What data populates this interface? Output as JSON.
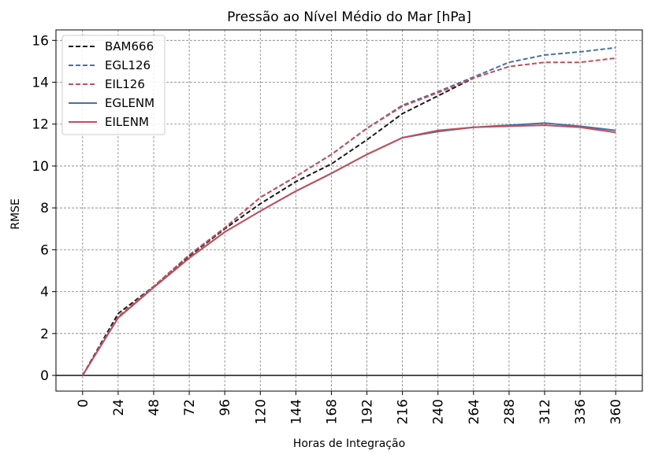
{
  "chart_data": {
    "type": "line",
    "title": "Pressão ao Nível Médio do Mar [hPa]",
    "xlabel": "Horas de Integração",
    "ylabel": "RMSE",
    "x": [
      0,
      24,
      48,
      72,
      96,
      120,
      144,
      168,
      192,
      216,
      240,
      264,
      288,
      312,
      336,
      360
    ],
    "x_tick_labels": [
      "0",
      "24",
      "48",
      "72",
      "96",
      "120",
      "144",
      "168",
      "192",
      "216",
      "240",
      "264",
      "288",
      "312",
      "336",
      "360"
    ],
    "y_ticks": [
      0,
      2,
      4,
      6,
      8,
      10,
      12,
      14,
      16
    ],
    "y_tick_labels": [
      "0",
      "2",
      "4",
      "6",
      "8",
      "10",
      "12",
      "14",
      "16"
    ],
    "xlim": [
      -18,
      378
    ],
    "ylim": [
      -0.75,
      16.5
    ],
    "grid": true,
    "legend_position": "top-left",
    "series": [
      {
        "name": "BAM666",
        "color": "#1a1a1a",
        "dash": true,
        "values": [
          0,
          2.95,
          4.25,
          5.7,
          7.0,
          8.2,
          9.25,
          10.1,
          11.25,
          12.5,
          13.35,
          14.2,
          null,
          null,
          null,
          null
        ]
      },
      {
        "name": "EGL126",
        "color": "#4a6fa5",
        "dash": true,
        "values": [
          0,
          2.8,
          4.25,
          5.75,
          7.05,
          8.5,
          9.5,
          10.55,
          11.8,
          12.9,
          13.55,
          14.25,
          14.95,
          15.3,
          15.45,
          15.65
        ]
      },
      {
        "name": "EIL126",
        "color": "#c0505a",
        "dash": true,
        "values": [
          0,
          2.8,
          4.25,
          5.75,
          7.05,
          8.5,
          9.5,
          10.55,
          11.8,
          12.85,
          13.5,
          14.2,
          14.75,
          14.95,
          14.95,
          15.15
        ]
      },
      {
        "name": "EGLENM",
        "color": "#4a6fa5",
        "dash": false,
        "values": [
          0,
          2.75,
          4.2,
          5.6,
          6.85,
          7.85,
          8.8,
          9.65,
          10.55,
          11.35,
          11.65,
          11.85,
          11.95,
          12.05,
          11.9,
          11.7
        ]
      },
      {
        "name": "EILENM",
        "color": "#c0505a",
        "dash": false,
        "values": [
          0,
          2.75,
          4.2,
          5.6,
          6.85,
          7.85,
          8.8,
          9.65,
          10.55,
          11.35,
          11.7,
          11.85,
          11.9,
          11.95,
          11.85,
          11.6
        ]
      }
    ]
  }
}
